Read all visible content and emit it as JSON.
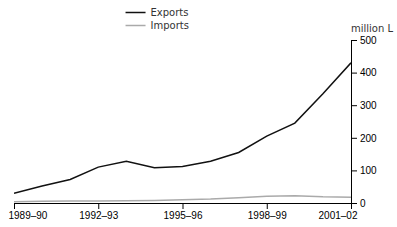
{
  "chart_data": {
    "type": "line",
    "y_label": "million L",
    "x": [
      0,
      1,
      2,
      3,
      4,
      5,
      6,
      7,
      8,
      9,
      10,
      11,
      12
    ],
    "xlim": [
      0,
      12
    ],
    "xticks": [
      {
        "value": 0,
        "label": "1989–90"
      },
      {
        "value": 3,
        "label": "1992–93"
      },
      {
        "value": 6,
        "label": "1995–96"
      },
      {
        "value": 9,
        "label": "1998–99"
      },
      {
        "value": 12,
        "label": "2001–02"
      }
    ],
    "ylim": [
      0,
      500
    ],
    "yticks": [
      0,
      100,
      200,
      300,
      400,
      500
    ],
    "series": [
      {
        "name": "Exports",
        "color": "#111111",
        "values": [
          30,
          52,
          72,
          110,
          128,
          108,
          112,
          128,
          155,
          205,
          245,
          335,
          430
        ]
      },
      {
        "name": "Imports",
        "color": "#aaaaaa",
        "values": [
          4,
          5,
          6,
          6,
          7,
          8,
          10,
          12,
          16,
          21,
          22,
          19,
          18
        ]
      }
    ],
    "legend": "top",
    "grid": false
  }
}
